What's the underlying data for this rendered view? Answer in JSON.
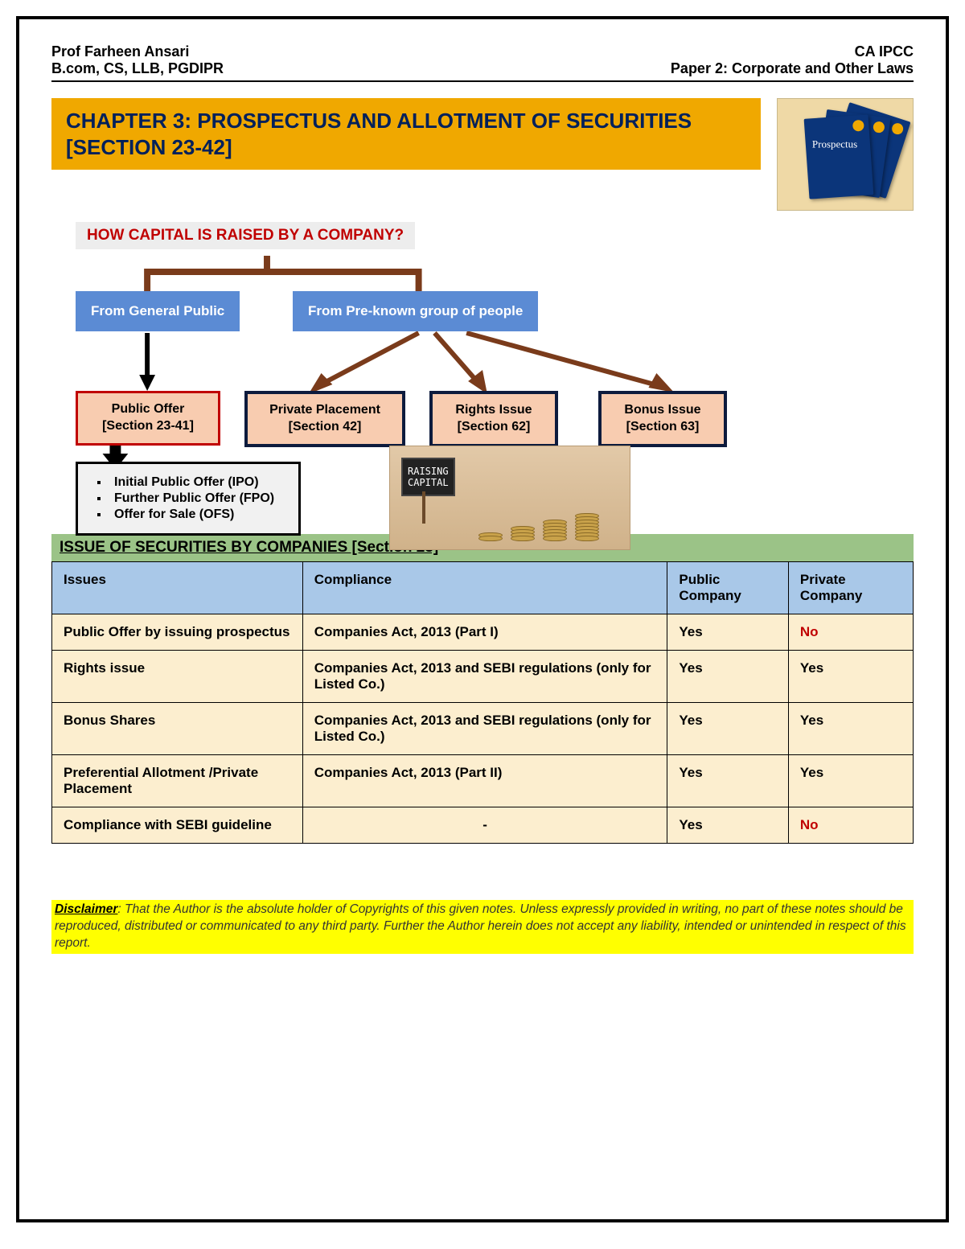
{
  "header": {
    "left_name": "Prof Farheen Ansari",
    "left_creds": "B.com, CS, LLB, PGDIPR",
    "right_course": "CA IPCC",
    "right_paper": "Paper 2: Corporate and Other Laws"
  },
  "chapter_title": "CHAPTER 3: PROSPECTUS AND ALLOTMENT OF SECURITIES [SECTION 23-42]",
  "prospectus_label": "Prospectus",
  "flowchart": {
    "question": "HOW CAPITAL IS RAISED BY A COMPANY?",
    "branches": {
      "left": "From General Public",
      "right": "From Pre-known group of people"
    },
    "leaves": {
      "public_offer": "Public Offer\n[Section 23-41]",
      "private_placement": "Private Placement\n[Section 42]",
      "rights_issue": "Rights Issue\n[Section 62]",
      "bonus_issue": "Bonus Issue\n[Section 63]"
    },
    "sublist": [
      "Initial Public Offer (IPO)",
      "Further Public Offer (FPO)",
      "Offer for Sale (OFS)"
    ],
    "colors": {
      "connector": "#7a3b1b",
      "arrow_black": "#000000",
      "blue_box_bg": "#5b8bd4",
      "peach_bg": "#f8ccb0",
      "red_border": "#c00000",
      "navy_border": "#0d1b3d",
      "list_bg": "#f1f1f1"
    },
    "capital_sign": "RAISING\nCAPITAL"
  },
  "section_green": "ISSUE OF SECURITIES BY COMPANIES [Section 23]",
  "table": {
    "columns": [
      "Issues",
      "Compliance",
      "Public Company",
      "Private Company"
    ],
    "rows": [
      {
        "issue": "Public Offer by issuing prospectus",
        "compliance": "Companies Act, 2013 (Part I)",
        "public": "Yes",
        "private": "No",
        "private_red": true
      },
      {
        "issue": "Rights issue",
        "compliance": "Companies Act, 2013 and SEBI regulations (only for Listed Co.)",
        "public": "Yes",
        "private": "Yes",
        "private_red": false
      },
      {
        "issue": "Bonus Shares",
        "compliance": "Companies Act, 2013 and SEBI regulations (only for Listed Co.)",
        "public": "Yes",
        "private": "Yes",
        "private_red": false
      },
      {
        "issue": "Preferential Allotment /Private Placement",
        "compliance": "Companies Act, 2013 (Part II)",
        "public": "Yes",
        "private": "Yes",
        "private_red": false
      },
      {
        "issue": "Compliance with SEBI guideline",
        "compliance": "-",
        "public": "Yes",
        "private": "No",
        "private_red": true
      }
    ],
    "header_bg": "#a9c8e8",
    "row_bg": "#fceecf"
  },
  "disclaimer": {
    "label": "Disclaimer",
    "text": ": That the Author is the absolute holder of Copyrights of this given notes. Unless expressly provided in writing, no part of these notes should be reproduced, distributed or communicated to any third party. Further the Author herein does not accept any liability, intended or unintended in respect of this report."
  }
}
